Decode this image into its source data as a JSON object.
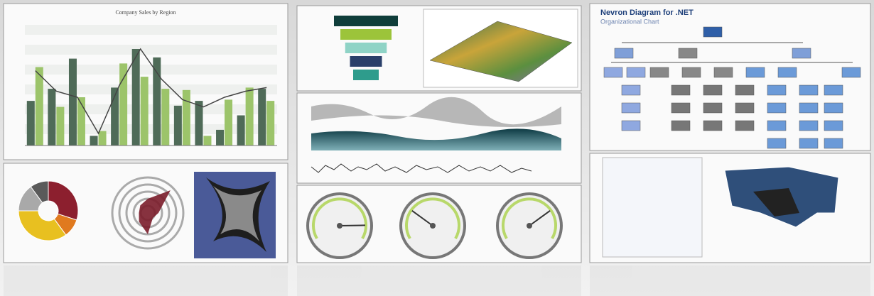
{
  "bar_chart": {
    "type": "bar",
    "title": "Company Sales by Region",
    "ylim": [
      0,
      100
    ],
    "series": [
      {
        "color": "#4f6b58",
        "values": [
          37,
          47,
          72,
          8,
          48,
          80,
          73,
          33,
          37,
          13,
          25,
          47
        ]
      },
      {
        "color": "#9cc46a",
        "values": [
          65,
          32,
          40,
          12,
          68,
          57,
          47,
          46,
          8,
          38,
          48,
          37
        ]
      },
      {
        "type": "line",
        "color": "#444444",
        "values": [
          62,
          45,
          40,
          10,
          50,
          80,
          55,
          38,
          32,
          40,
          45,
          48
        ]
      }
    ]
  },
  "donut": {
    "type": "pie",
    "values": [
      30,
      10,
      35,
      15,
      10
    ],
    "colors": [
      "#8c1f2e",
      "#e07a1f",
      "#e8c020",
      "#a9a9a9",
      "#5a5a5a"
    ]
  },
  "radar": {
    "type": "radar",
    "rlim": [
      0,
      1
    ],
    "values": [
      0.4,
      0.9,
      0.3,
      0.2,
      0.6,
      0.35,
      0.25,
      0.3
    ],
    "color": "#7a1c2a"
  },
  "funnel": {
    "type": "funnel",
    "values": [
      100,
      80,
      65,
      50,
      40
    ],
    "colors": [
      "#0f3d3a",
      "#9cc43a",
      "#8fd3c6",
      "#2a3f6a",
      "#2e9c8c"
    ]
  },
  "gauges": {
    "type": "gauge",
    "ylim": [
      0,
      100
    ],
    "values": [
      83,
      30,
      70
    ]
  },
  "org_chart": {
    "title": "Nevron Diagram for .NET",
    "subtitle": "Organizational Chart"
  }
}
